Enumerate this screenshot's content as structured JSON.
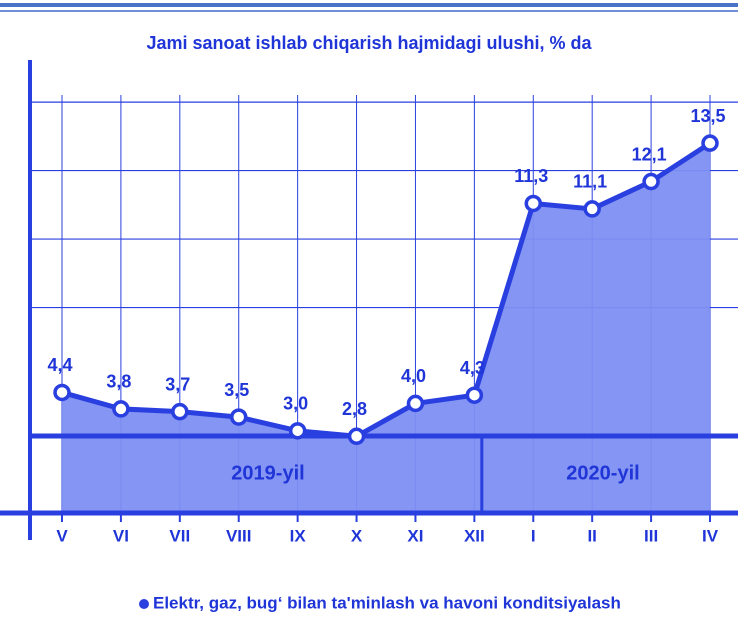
{
  "chart_data": {
    "type": "area-line",
    "title": "Jami sanoat ishlab chiqarish hajmidagi ulushi, % da",
    "categories": [
      "V",
      "VI",
      "VII",
      "VIII",
      "IX",
      "X",
      "XI",
      "XII",
      "I",
      "II",
      "III",
      "IV"
    ],
    "series": [
      {
        "name": "Elektr, gaz, bug‘ bilan ta'minlash va havoni konditsiyalash",
        "color": "#2a3fe0",
        "fill": "#7d8ff2",
        "values": [
          4.4,
          3.8,
          3.7,
          3.5,
          3.0,
          2.8,
          4.0,
          4.3,
          11.3,
          11.1,
          12.1,
          13.5
        ],
        "value_labels": [
          "4,4",
          "3,8",
          "3,7",
          "3,5",
          "3,0",
          "2,8",
          "4,0",
          "4,3",
          "11,3",
          "11,1",
          "12,1",
          "13,5"
        ]
      }
    ],
    "annotations": [
      "2019-yil",
      "2020-yil"
    ],
    "ylim": [
      0,
      16.5
    ],
    "yticks": [
      7.5,
      10,
      12.5,
      15
    ],
    "grid": true
  }
}
